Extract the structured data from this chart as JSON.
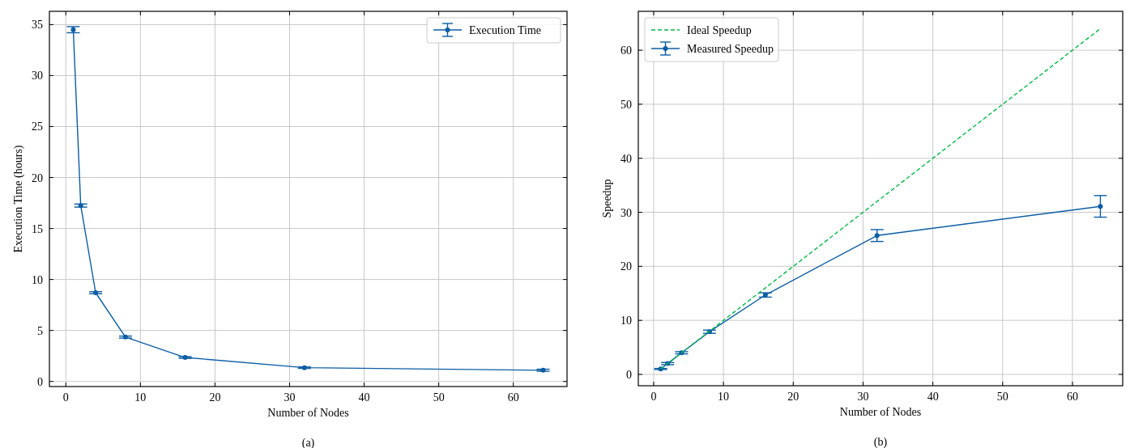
{
  "chart_data": [
    {
      "type": "line",
      "xlabel": "Number of Nodes",
      "ylabel": "Execution Time (hours)",
      "annotations": [
        "(a)"
      ],
      "x": [
        1,
        2,
        4,
        8,
        16,
        32,
        64
      ],
      "series": [
        {
          "name": "Execution Time",
          "color": "#0c5da5",
          "values": [
            34.5,
            17.25,
            8.7,
            4.35,
            2.35,
            1.35,
            1.1
          ],
          "errors": [
            0.3,
            0.15,
            0.1,
            0.1,
            0.08,
            0.07,
            0.1
          ]
        }
      ],
      "xlim": [
        -2.2,
        67.2
      ],
      "xticks": [
        0,
        10,
        20,
        30,
        40,
        50,
        60
      ],
      "ylim": [
        -0.5,
        36.3
      ],
      "yticks": [
        0,
        5,
        10,
        15,
        20,
        25,
        30,
        35
      ],
      "grid": true,
      "legend": "top right",
      "marker": "circle"
    },
    {
      "type": "line",
      "xlabel": "Number of Nodes",
      "ylabel": "Speedup",
      "annotations": [
        "(b)"
      ],
      "x": [
        1,
        2,
        4,
        8,
        16,
        32,
        64
      ],
      "series": [
        {
          "name": "Ideal Speedup",
          "color": "#00b945",
          "values": [
            1,
            2,
            4,
            8,
            16,
            32,
            64
          ],
          "line_style": "dashed",
          "marker": "none"
        },
        {
          "name": "Measured Speedup",
          "color": "#0c5da5",
          "values": [
            1,
            2,
            4,
            7.9,
            14.7,
            25.7,
            31.1
          ],
          "errors": [
            0.1,
            0.2,
            0.2,
            0.3,
            0.4,
            1.1,
            2.0
          ],
          "marker": "circle"
        }
      ],
      "xlim": [
        -2.2,
        67.2
      ],
      "xticks": [
        0,
        10,
        20,
        30,
        40,
        50,
        60
      ],
      "ylim": [
        -2.1,
        67.2
      ],
      "yticks": [
        0,
        10,
        20,
        30,
        40,
        50,
        60
      ],
      "grid": true,
      "legend": "top left"
    }
  ]
}
